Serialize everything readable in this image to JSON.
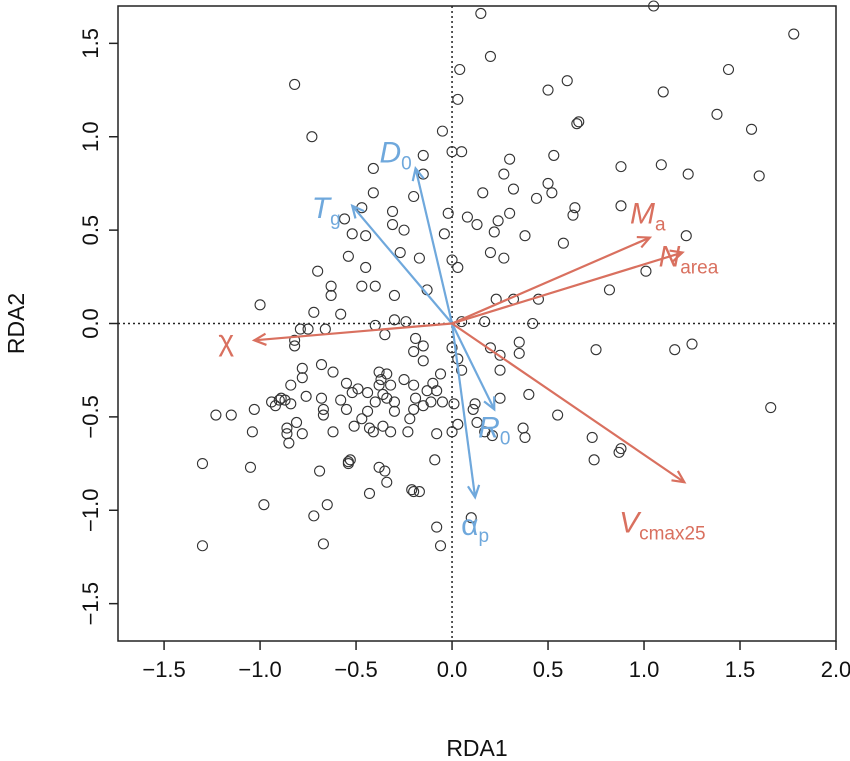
{
  "chart_data": {
    "type": "scatter",
    "title": "",
    "xlabel": "RDA1",
    "ylabel": "RDA2",
    "xlim": [
      -1.74,
      2.0
    ],
    "ylim": [
      -1.7,
      1.7
    ],
    "x_ticks": [
      "−1.5",
      "−1.0",
      "−0.5",
      "0.0",
      "0.5",
      "1.0",
      "1.5",
      "2.0"
    ],
    "x_tick_values": [
      -1.5,
      -1.0,
      -0.5,
      0.0,
      0.5,
      1.0,
      1.5,
      2.0
    ],
    "y_ticks": [
      "−1.5",
      "−1.0",
      "−0.5",
      "0.0",
      "0.5",
      "1.0",
      "1.5"
    ],
    "y_tick_values": [
      -1.5,
      -1.0,
      -0.5,
      0.0,
      0.5,
      1.0,
      1.5
    ],
    "reference_lines": {
      "x": 0,
      "y": 0,
      "style": "dotted"
    },
    "grid": false,
    "colors": {
      "climate": "#6fa8dc",
      "traits": "#d9705f",
      "points": "#333333"
    },
    "points": [
      [
        1.05,
        1.7
      ],
      [
        0.15,
        1.66
      ],
      [
        1.78,
        1.55
      ],
      [
        0.2,
        1.43
      ],
      [
        0.04,
        1.36
      ],
      [
        1.44,
        1.36
      ],
      [
        0.6,
        1.3
      ],
      [
        -0.82,
        1.28
      ],
      [
        0.03,
        1.2
      ],
      [
        0.5,
        1.25
      ],
      [
        1.1,
        1.24
      ],
      [
        1.38,
        1.12
      ],
      [
        0.65,
        1.07
      ],
      [
        0.66,
        1.08
      ],
      [
        -0.73,
        1.0
      ],
      [
        -0.05,
        1.03
      ],
      [
        1.56,
        1.04
      ],
      [
        0.0,
        0.92
      ],
      [
        0.05,
        0.92
      ],
      [
        -0.15,
        0.9
      ],
      [
        0.3,
        0.88
      ],
      [
        0.53,
        0.9
      ],
      [
        -0.41,
        0.83
      ],
      [
        0.88,
        0.84
      ],
      [
        1.23,
        0.8
      ],
      [
        1.6,
        0.79
      ],
      [
        0.27,
        0.8
      ],
      [
        1.09,
        0.85
      ],
      [
        -0.15,
        0.8
      ],
      [
        0.5,
        0.75
      ],
      [
        0.16,
        0.7
      ],
      [
        0.32,
        0.72
      ],
      [
        0.44,
        0.67
      ],
      [
        0.52,
        0.7
      ],
      [
        -0.41,
        0.7
      ],
      [
        -0.2,
        0.68
      ],
      [
        0.64,
        0.62
      ],
      [
        0.88,
        0.63
      ],
      [
        -0.56,
        0.56
      ],
      [
        -0.47,
        0.62
      ],
      [
        -0.31,
        0.6
      ],
      [
        -0.02,
        0.59
      ],
      [
        0.08,
        0.57
      ],
      [
        0.13,
        0.53
      ],
      [
        0.24,
        0.55
      ],
      [
        0.3,
        0.59
      ],
      [
        0.63,
        0.58
      ],
      [
        -0.52,
        0.48
      ],
      [
        -0.45,
        0.47
      ],
      [
        -0.25,
        0.5
      ],
      [
        -0.31,
        0.53
      ],
      [
        -0.04,
        0.48
      ],
      [
        0.22,
        0.49
      ],
      [
        0.38,
        0.47
      ],
      [
        0.58,
        0.43
      ],
      [
        -0.54,
        0.36
      ],
      [
        -0.27,
        0.38
      ],
      [
        -0.17,
        0.35
      ],
      [
        0.0,
        0.34
      ],
      [
        0.2,
        0.38
      ],
      [
        0.27,
        0.35
      ],
      [
        -0.7,
        0.28
      ],
      [
        -0.45,
        0.3
      ],
      [
        1.01,
        0.28
      ],
      [
        1.22,
        0.47
      ],
      [
        0.03,
        0.3
      ],
      [
        -0.63,
        0.2
      ],
      [
        -0.47,
        0.2
      ],
      [
        -0.4,
        0.2
      ],
      [
        -1.0,
        0.1
      ],
      [
        -0.63,
        0.15
      ],
      [
        -0.13,
        0.18
      ],
      [
        0.23,
        0.13
      ],
      [
        0.45,
        0.13
      ],
      [
        0.32,
        0.13
      ],
      [
        -0.3,
        0.15
      ],
      [
        0.82,
        0.18
      ],
      [
        -0.72,
        0.06
      ],
      [
        -0.58,
        0.05
      ],
      [
        -0.3,
        0.02
      ],
      [
        -0.24,
        0.01
      ],
      [
        0.05,
        0.01
      ],
      [
        0.17,
        0.01
      ],
      [
        0.42,
        0.0
      ],
      [
        -0.4,
        -0.01
      ],
      [
        -0.79,
        -0.03
      ],
      [
        -0.75,
        -0.03
      ],
      [
        -0.66,
        -0.03
      ],
      [
        -0.35,
        -0.06
      ],
      [
        -0.19,
        -0.08
      ],
      [
        -0.15,
        -0.12
      ],
      [
        0.0,
        -0.13
      ],
      [
        0.2,
        -0.13
      ],
      [
        0.35,
        -0.1
      ],
      [
        -0.82,
        -0.09
      ],
      [
        -0.82,
        -0.12
      ],
      [
        -0.2,
        -0.15
      ],
      [
        -0.15,
        -0.2
      ],
      [
        0.03,
        -0.19
      ],
      [
        0.25,
        -0.17
      ],
      [
        0.35,
        -0.16
      ],
      [
        0.75,
        -0.14
      ],
      [
        1.16,
        -0.14
      ],
      [
        1.25,
        -0.11
      ],
      [
        -0.68,
        -0.22
      ],
      [
        -0.78,
        -0.24
      ],
      [
        -0.62,
        -0.26
      ],
      [
        -0.38,
        -0.26
      ],
      [
        -0.06,
        -0.27
      ],
      [
        -0.25,
        -0.3
      ],
      [
        -0.34,
        -0.27
      ],
      [
        -0.37,
        -0.3
      ],
      [
        0.05,
        -0.25
      ],
      [
        0.25,
        -0.25
      ],
      [
        -0.78,
        -0.29
      ],
      [
        -0.84,
        -0.33
      ],
      [
        -0.55,
        -0.32
      ],
      [
        -0.49,
        -0.35
      ],
      [
        -0.38,
        -0.33
      ],
      [
        -0.32,
        -0.33
      ],
      [
        -0.2,
        -0.33
      ],
      [
        -0.1,
        -0.32
      ],
      [
        -0.52,
        -0.37
      ],
      [
        -0.44,
        -0.37
      ],
      [
        -0.36,
        -0.38
      ],
      [
        -0.13,
        -0.36
      ],
      [
        -0.08,
        -0.36
      ],
      [
        -0.19,
        -0.4
      ],
      [
        -0.34,
        -0.4
      ],
      [
        -0.11,
        -0.42
      ],
      [
        -0.94,
        -0.42
      ],
      [
        -0.76,
        -0.39
      ],
      [
        -0.68,
        -0.4
      ],
      [
        -0.58,
        -0.41
      ],
      [
        -0.4,
        -0.42
      ],
      [
        -0.3,
        -0.42
      ],
      [
        -0.15,
        -0.44
      ],
      [
        -0.05,
        -0.42
      ],
      [
        0.01,
        -0.43
      ],
      [
        0.12,
        -0.43
      ],
      [
        0.25,
        -0.4
      ],
      [
        0.4,
        -0.38
      ],
      [
        -0.89,
        -0.4
      ],
      [
        -0.9,
        -0.41
      ],
      [
        -0.87,
        -0.41
      ],
      [
        -0.92,
        -0.44
      ],
      [
        -0.84,
        -0.43
      ],
      [
        -0.67,
        -0.46
      ],
      [
        -0.55,
        -0.46
      ],
      [
        -0.44,
        -0.47
      ],
      [
        -0.3,
        -0.47
      ],
      [
        -0.2,
        -0.46
      ],
      [
        0.11,
        -0.46
      ],
      [
        -1.23,
        -0.49
      ],
      [
        -1.15,
        -0.49
      ],
      [
        -1.03,
        -0.46
      ],
      [
        -0.67,
        -0.49
      ],
      [
        -0.47,
        -0.51
      ],
      [
        -0.22,
        -0.51
      ],
      [
        0.55,
        -0.49
      ],
      [
        1.66,
        -0.45
      ],
      [
        -0.81,
        -0.53
      ],
      [
        -0.86,
        -0.56
      ],
      [
        -0.51,
        -0.55
      ],
      [
        -0.43,
        -0.56
      ],
      [
        -0.36,
        -0.55
      ],
      [
        -0.32,
        -0.58
      ],
      [
        0.03,
        -0.54
      ],
      [
        0.13,
        -0.53
      ],
      [
        0.37,
        -0.56
      ],
      [
        -1.04,
        -0.58
      ],
      [
        -0.86,
        -0.59
      ],
      [
        -0.78,
        -0.59
      ],
      [
        -0.62,
        -0.58
      ],
      [
        -0.23,
        -0.58
      ],
      [
        -0.08,
        -0.59
      ],
      [
        -0.41,
        -0.58
      ],
      [
        0.0,
        -0.58
      ],
      [
        0.17,
        -0.58
      ],
      [
        0.38,
        -0.61
      ],
      [
        0.73,
        -0.61
      ],
      [
        -0.85,
        -0.64
      ],
      [
        0.21,
        -0.6
      ],
      [
        0.88,
        -0.67
      ],
      [
        0.87,
        -0.69
      ],
      [
        -0.09,
        -0.73
      ],
      [
        -0.53,
        -0.73
      ],
      [
        -0.54,
        -0.74
      ],
      [
        -0.54,
        -0.75
      ],
      [
        -1.3,
        -0.75
      ],
      [
        -0.38,
        -0.77
      ],
      [
        -1.05,
        -0.77
      ],
      [
        -0.69,
        -0.79
      ],
      [
        0.74,
        -0.73
      ],
      [
        -0.35,
        -0.79
      ],
      [
        -0.34,
        -0.85
      ],
      [
        -0.43,
        -0.91
      ],
      [
        -0.21,
        -0.89
      ],
      [
        -0.2,
        -0.9
      ],
      [
        -0.17,
        -0.9
      ],
      [
        -0.98,
        -0.97
      ],
      [
        -0.65,
        -0.97
      ],
      [
        -0.72,
        -1.03
      ],
      [
        -0.08,
        -1.09
      ],
      [
        0.1,
        -1.04
      ],
      [
        -0.67,
        -1.18
      ],
      [
        -1.3,
        -1.19
      ],
      [
        -0.06,
        -1.19
      ]
    ],
    "arrows": [
      {
        "label": "T",
        "sub": "g",
        "group": "climate",
        "end": [
          -0.52,
          0.63
        ]
      },
      {
        "label": "D",
        "sub": "0",
        "group": "climate",
        "end": [
          -0.19,
          0.83
        ]
      },
      {
        "label": "R",
        "sub": "0",
        "group": "climate",
        "end": [
          0.22,
          -0.46
        ]
      },
      {
        "label": "α",
        "sub": "p",
        "group": "climate",
        "end": [
          0.12,
          -0.93
        ]
      },
      {
        "label": "χ",
        "sub": "",
        "group": "traits",
        "end": [
          -1.03,
          -0.09
        ]
      },
      {
        "label": "M",
        "sub": "a",
        "group": "traits",
        "end": [
          1.03,
          0.46
        ]
      },
      {
        "label": "N",
        "sub": "area",
        "group": "traits",
        "end": [
          1.2,
          0.38
        ]
      },
      {
        "label": "V",
        "sub": "cmax25",
        "group": "traits",
        "end": [
          1.21,
          -0.85
        ]
      }
    ]
  }
}
